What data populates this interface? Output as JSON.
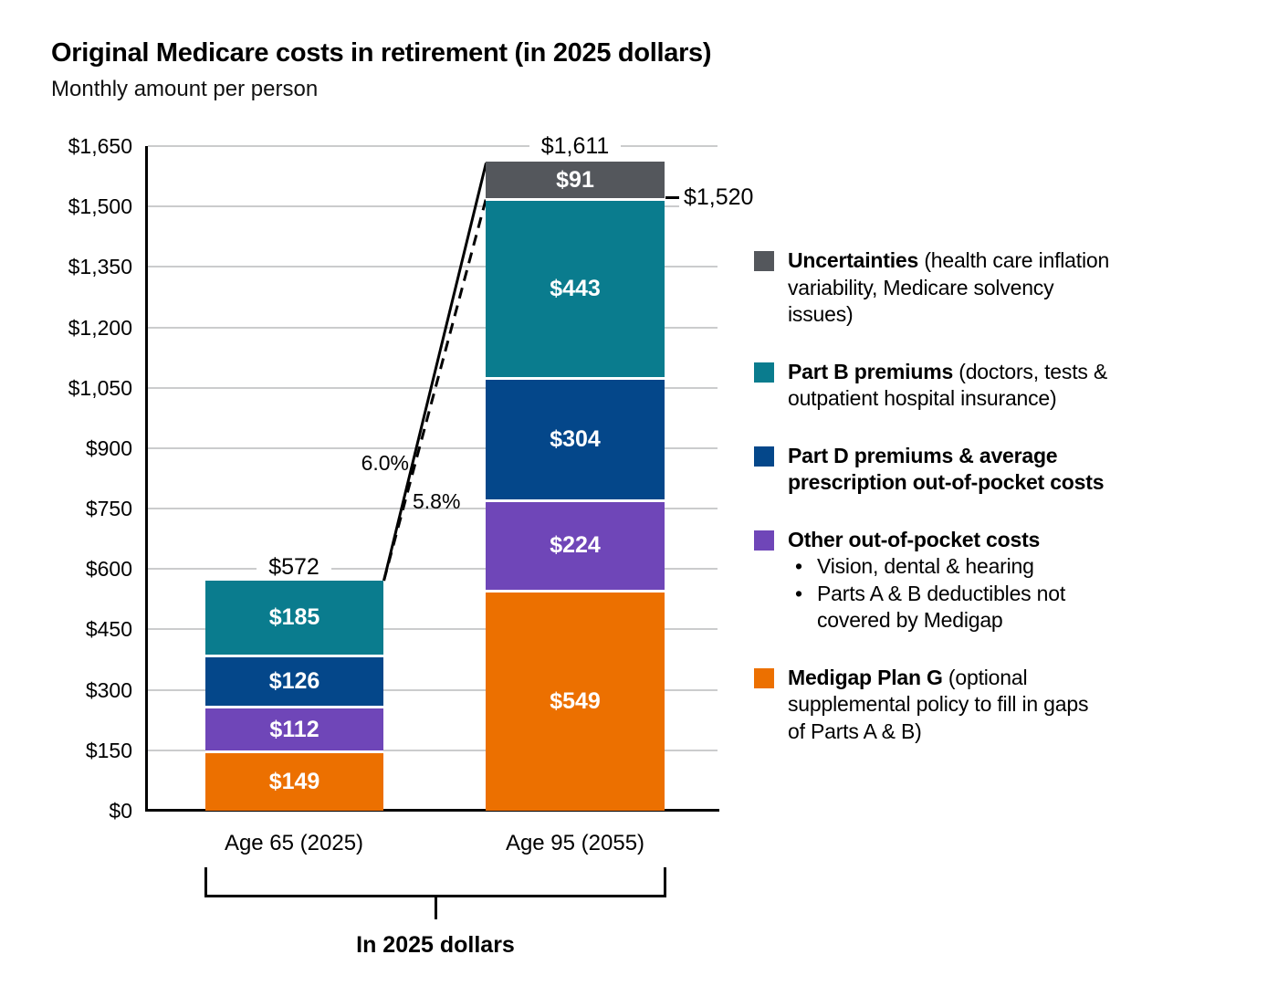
{
  "page": {
    "background": "#ffffff"
  },
  "chart_data": {
    "type": "bar",
    "stacked": true,
    "title": "Original Medicare costs in retirement (in 2025 dollars)",
    "subtitle": "Monthly amount per person",
    "categories": [
      "Age 65 (2025)",
      "Age 95 (2055)"
    ],
    "series": [
      {
        "key": "medigap-plan-g",
        "name": "Medigap Plan G",
        "color": "#EC7000",
        "values": [
          149,
          549
        ],
        "labels": [
          "$149",
          "$549"
        ]
      },
      {
        "key": "other-out-of-pocket-costs",
        "name": "Other out-of-pocket costs",
        "color": "#6F46B8",
        "values": [
          112,
          224
        ],
        "labels": [
          "$112",
          "$224"
        ]
      },
      {
        "key": "part-d-premiums",
        "name": "Part D premiums & average prescription out-of-pocket costs",
        "color": "#04478A",
        "values": [
          126,
          304
        ],
        "labels": [
          "$126",
          "$304"
        ]
      },
      {
        "key": "part-b-premiums",
        "name": "Part B premiums",
        "color": "#0A7C8E",
        "values": [
          185,
          443
        ],
        "labels": [
          "$185",
          "$443"
        ]
      },
      {
        "key": "uncertainties",
        "name": "Uncertainties",
        "color": "#54575C",
        "values": [
          0,
          91
        ],
        "labels": [
          "",
          "$91"
        ]
      }
    ],
    "totals": [
      "$572",
      "$1,611"
    ],
    "subtotal_marker": {
      "label": "$1,520",
      "value": 1520,
      "bar_index": 1
    },
    "growth_labels": [
      {
        "text": "6.0%",
        "line_style": "solid"
      },
      {
        "text": "5.8%",
        "line_style": "dashed"
      }
    ],
    "ylim": [
      0,
      1650
    ],
    "ytick_step": 150,
    "yticks": [
      "$0",
      "$150",
      "$300",
      "$450",
      "$600",
      "$750",
      "$900",
      "$1,050",
      "$1,200",
      "$1,350",
      "$1,500",
      "$1,650"
    ],
    "grid": true,
    "legend_position": "right",
    "axis_note": "In 2025 dollars"
  },
  "legend": {
    "items": [
      {
        "key": "uncertainties",
        "color": "#54575C",
        "name": "Uncertainties",
        "desc": "(health care inflation variability, Medicare solvency issues)",
        "bullets": []
      },
      {
        "key": "part-b-premiums",
        "color": "#0A7C8E",
        "name": "Part B premiums",
        "desc": "(doctors, tests & outpatient hospital insurance)",
        "bullets": []
      },
      {
        "key": "part-d-premiums",
        "color": "#04478A",
        "name": "Part D premiums & average prescription out-of-pocket costs",
        "desc": "",
        "bullets": []
      },
      {
        "key": "other-out-of-pocket-costs",
        "color": "#6F46B8",
        "name": "Other out-of-pocket costs",
        "desc": "",
        "bullets": [
          "Vision, dental & hearing",
          "Parts A & B deductibles not covered by Medigap"
        ]
      },
      {
        "key": "medigap-plan-g",
        "color": "#EC7000",
        "name": "Medigap Plan G",
        "desc": "(optional supplemental policy to fill in gaps of Parts A & B)",
        "bullets": []
      }
    ]
  },
  "colors": {
    "axis": "#000000",
    "gridline": "#cbcccd",
    "bar_value_text": "#ffffff"
  }
}
